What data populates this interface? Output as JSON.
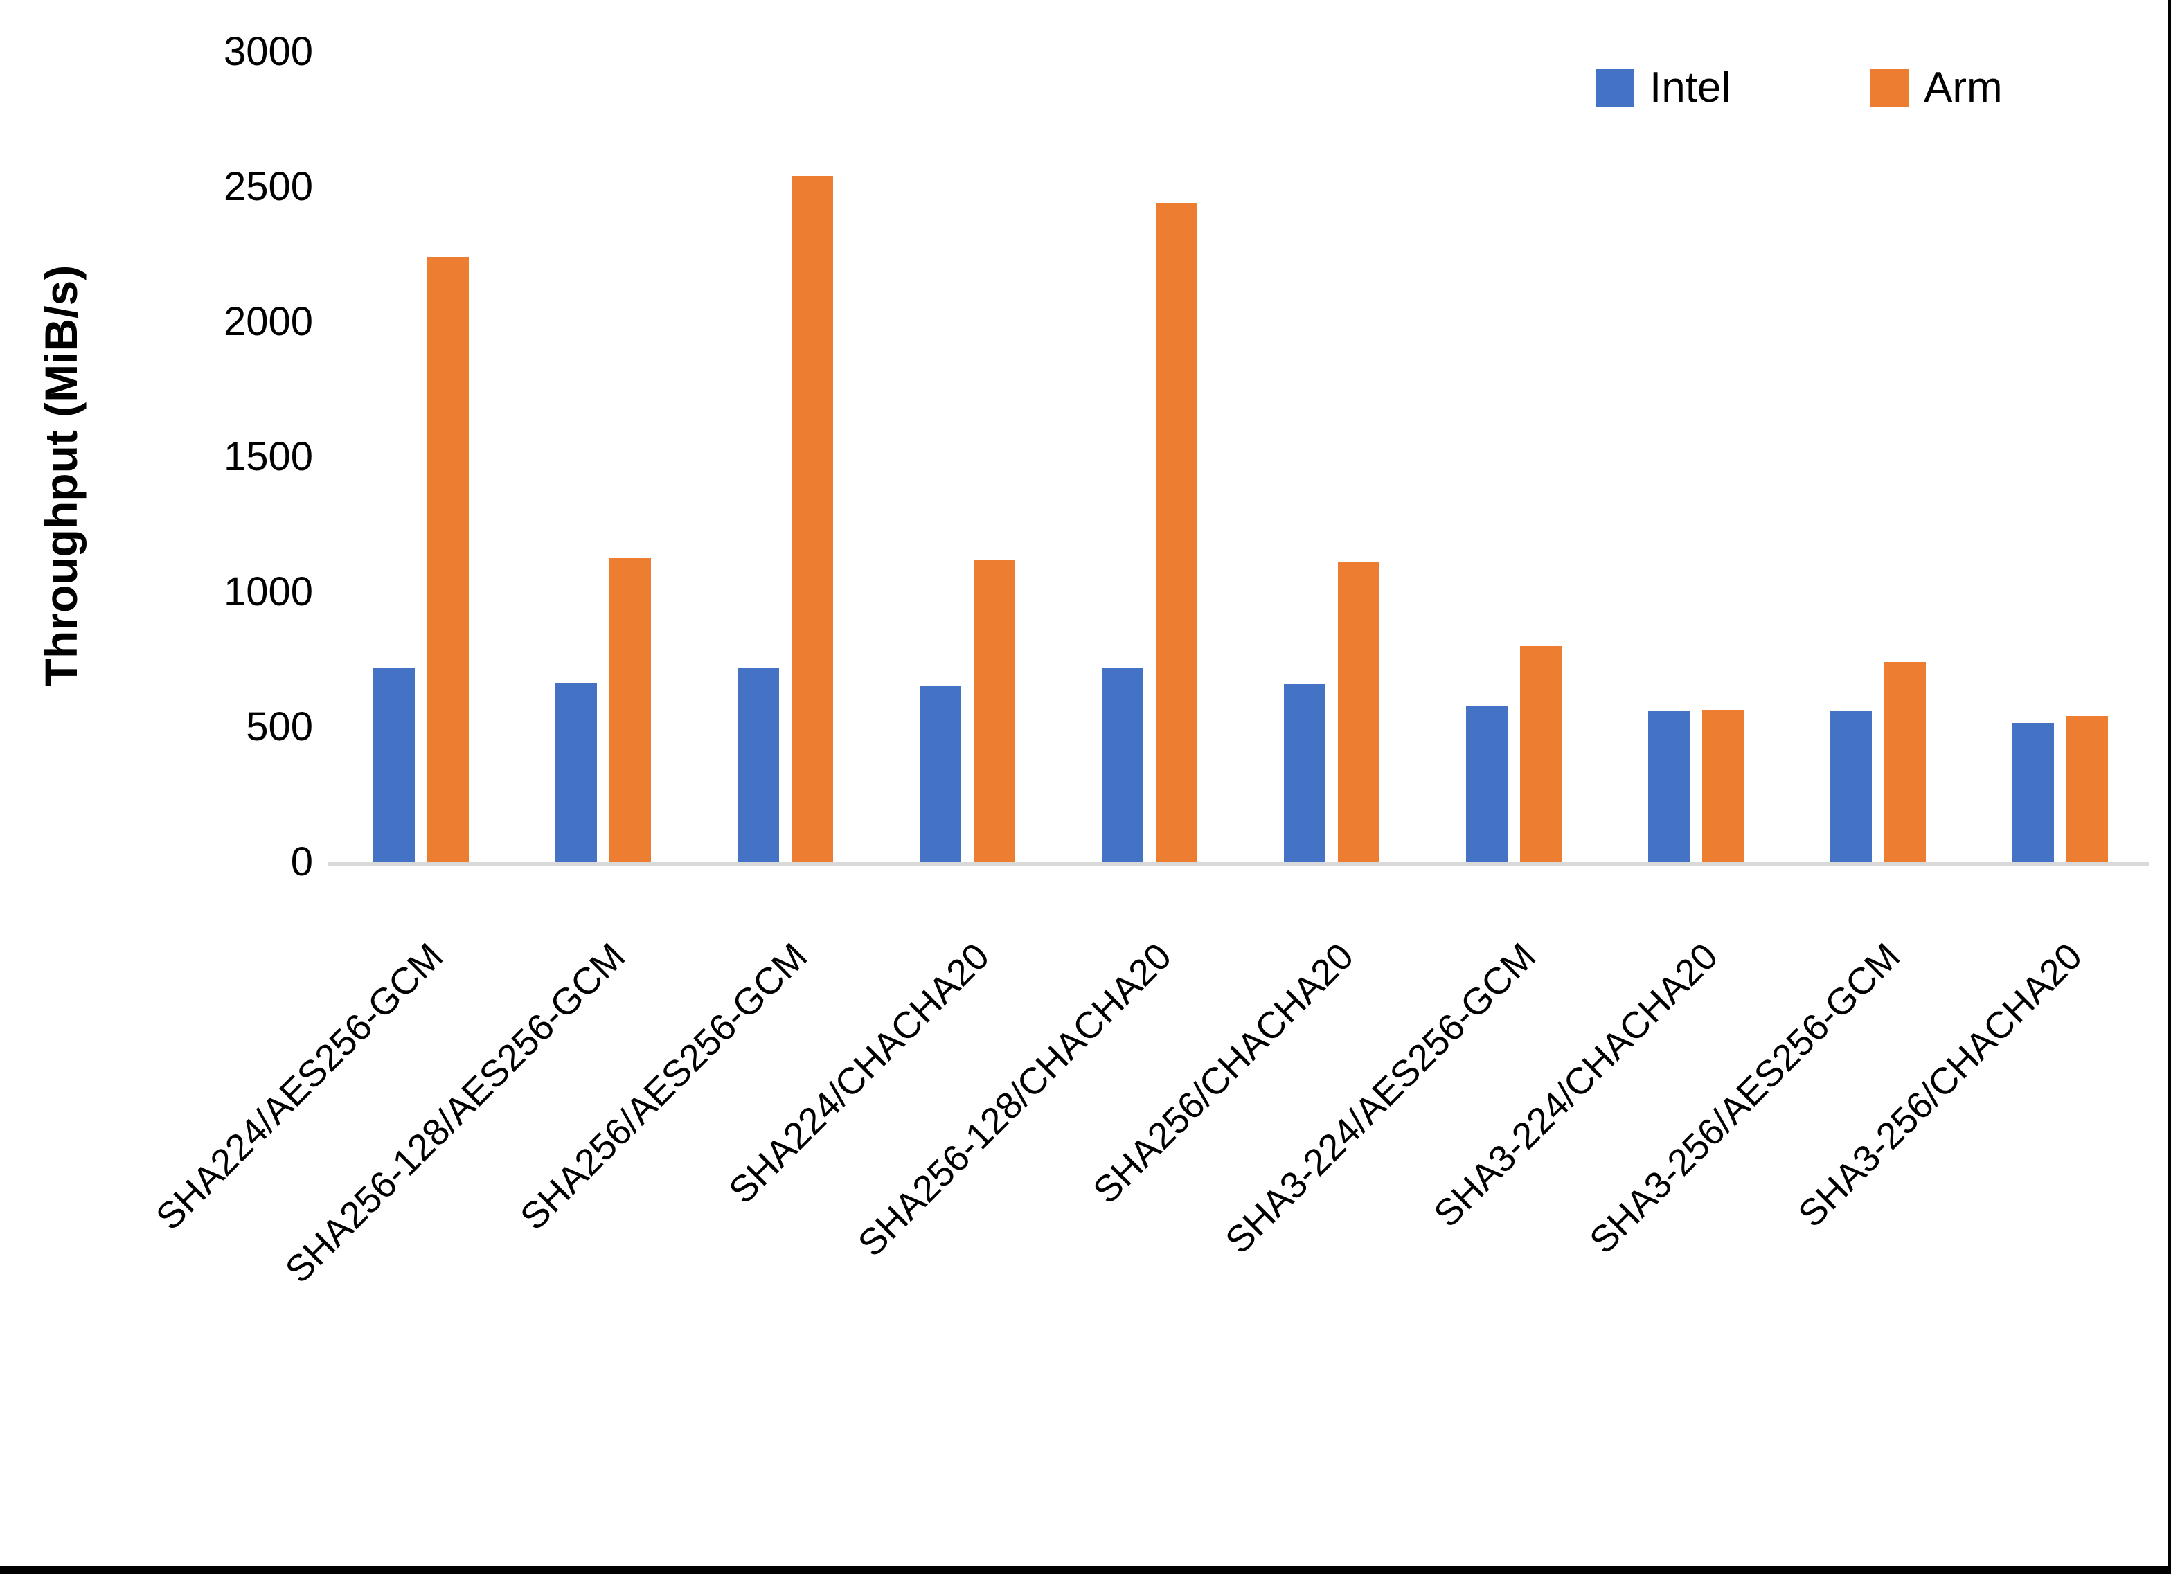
{
  "chart_data": {
    "type": "bar",
    "title": "",
    "xlabel": "",
    "ylabel": "Throughput (MiB/s)",
    "ylim": [
      0,
      3000
    ],
    "yticks": [
      0,
      500,
      1000,
      1500,
      2000,
      2500,
      3000
    ],
    "grid": false,
    "legend_position": "top-right",
    "axis_line_color": "#d9d9d9",
    "figure_border_color": "#000000",
    "categories": [
      "SHA224/AES256-GCM",
      "SHA256-128/AES256-GCM",
      "SHA256/AES256-GCM",
      "SHA224/CHACHA20",
      "SHA256-128/CHACHA20",
      "SHA256/CHACHA20",
      "SHA3-224/AES256-GCM",
      "SHA3-224/CHACHA20",
      "SHA3-256/AES256-GCM",
      "SHA3-256/CHACHA20"
    ],
    "series": [
      {
        "name": "Intel",
        "color": "#4472C4",
        "values": [
          720,
          665,
          720,
          655,
          720,
          660,
          580,
          560,
          560,
          515
        ]
      },
      {
        "name": "Arm",
        "color": "#ED7D31",
        "values": [
          2240,
          1125,
          2540,
          1120,
          2440,
          1110,
          800,
          565,
          740,
          540
        ]
      }
    ]
  }
}
